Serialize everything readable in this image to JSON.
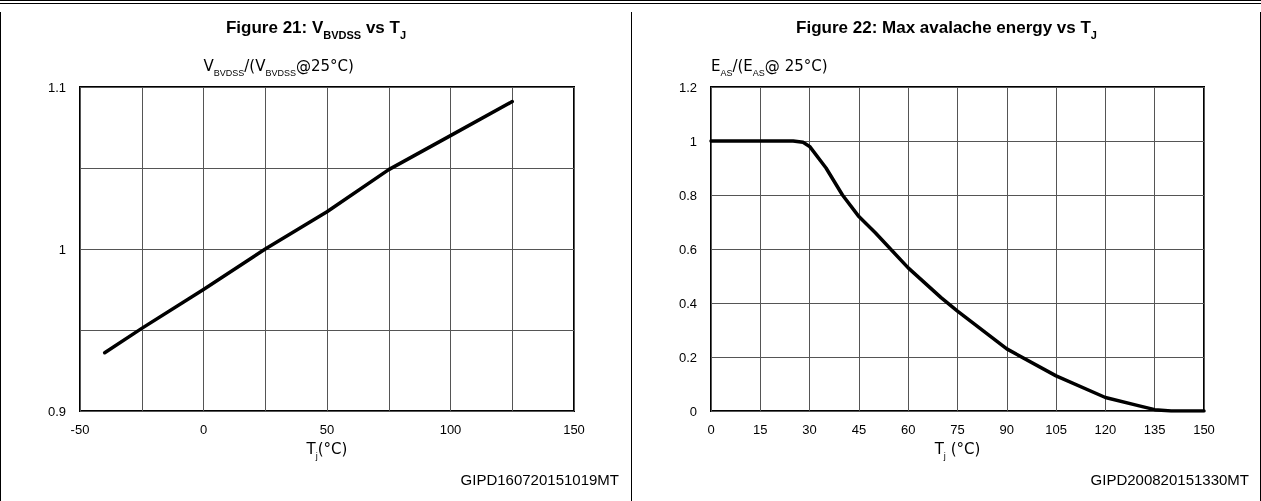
{
  "chart_data": [
    {
      "type": "line",
      "title": "Figure 21: V$_{BVDSS}$ vs T$_{J}$",
      "ylabel": "V$_{BVDSS}$/(V$_{BVDSS}$@25°C)",
      "xlabel": "T$_{j}$(°C)",
      "annotations": [
        "GIPD160720151019MT"
      ],
      "x": [
        -40,
        -25,
        0,
        25,
        50,
        75,
        100,
        125
      ],
      "values": [
        0.936,
        0.951,
        0.975,
        1.0,
        1.023,
        1.049,
        1.07,
        1.091
      ],
      "color": "#000000",
      "marker": "none",
      "line_style": "solid",
      "grid": true,
      "xlim": [
        -50,
        150
      ],
      "xticks": [
        -50,
        {
          "value": -25,
          "label": null
        },
        0,
        {
          "value": 25,
          "label": null
        },
        50,
        {
          "value": 75,
          "label": null
        },
        100,
        {
          "value": 125,
          "label": null
        },
        150
      ],
      "ylim": [
        0.9,
        1.1
      ],
      "yticks": [
        0.9,
        {
          "value": 0.95,
          "label": null
        },
        1,
        {
          "value": 1.05,
          "label": null
        },
        1.1
      ]
    },
    {
      "type": "line",
      "title": "Figure 22: Max avalache energy vs T$_{J}$",
      "ylabel": "E$_{AS}$/(E$_{AS}$@ 25°C)",
      "xlabel": "T$_{j}$ (°C)",
      "annotations": [
        "GIPD200820151330MT"
      ],
      "x": [
        0,
        25,
        28,
        30,
        35,
        40,
        45,
        50,
        60,
        70,
        75,
        90,
        105,
        120,
        130,
        135,
        140,
        150
      ],
      "values": [
        1,
        1,
        0.995,
        0.98,
        0.9,
        0.8,
        0.72,
        0.66,
        0.53,
        0.42,
        0.37,
        0.23,
        0.13,
        0.05,
        0.02,
        0.005,
        0,
        0
      ],
      "color": "#000000",
      "marker": "none",
      "line_style": "solid",
      "grid": true,
      "xlim": [
        0,
        150
      ],
      "xticks": [
        0,
        15,
        30,
        45,
        60,
        75,
        90,
        105,
        120,
        135,
        150
      ],
      "ylim": [
        0,
        1.2
      ],
      "yticks": [
        0,
        0.2,
        0.4,
        0.6,
        0.8,
        1,
        1.2
      ]
    }
  ]
}
